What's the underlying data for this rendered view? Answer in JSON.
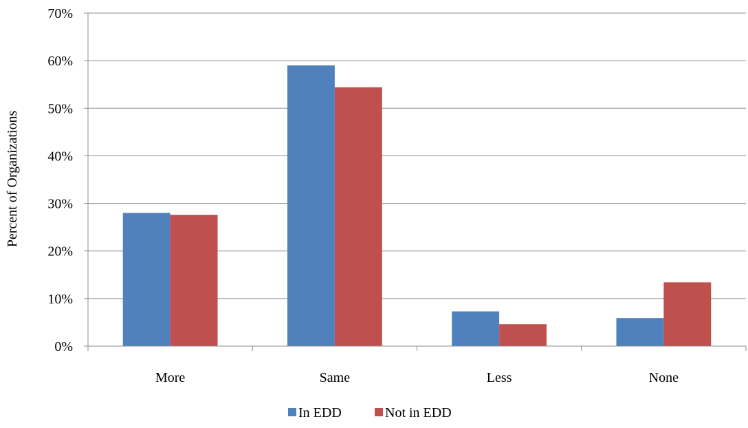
{
  "chart_data": {
    "type": "bar",
    "title": "",
    "xlabel": "",
    "ylabel": "Percent of Organizations",
    "categories": [
      "More",
      "Same",
      "Less",
      "None"
    ],
    "series": [
      {
        "name": "In EDD",
        "color": "#4F81BD",
        "values": [
          28,
          59,
          7.3,
          5.9
        ]
      },
      {
        "name": "Not in EDD",
        "color": "#C0504D",
        "values": [
          27.6,
          54.4,
          4.6,
          13.4
        ]
      }
    ],
    "ylim": [
      0,
      70
    ],
    "yticks": [
      0,
      10,
      20,
      30,
      40,
      50,
      60,
      70
    ],
    "ytick_labels": [
      "0%",
      "10%",
      "20%",
      "30%",
      "40%",
      "50%",
      "60%",
      "70%"
    ],
    "grid": true,
    "legend_position": "bottom"
  }
}
